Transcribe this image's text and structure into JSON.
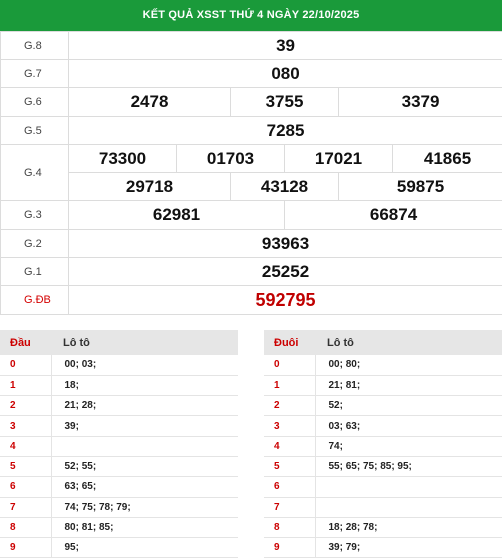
{
  "title": "KẾT QUẢ XSST THỨ 4 NGÀY 22/10/2025",
  "prizes": {
    "g8": {
      "label": "G.8",
      "nums": [
        "39"
      ]
    },
    "g7": {
      "label": "G.7",
      "nums": [
        "080"
      ]
    },
    "g6": {
      "label": "G.6",
      "nums": [
        "2478",
        "3755",
        "3379"
      ]
    },
    "g5": {
      "label": "G.5",
      "nums": [
        "7285"
      ]
    },
    "g4": {
      "label": "G.4",
      "nums": [
        "73300",
        "01703",
        "17021",
        "41865",
        "29718",
        "43128",
        "59875"
      ]
    },
    "g3": {
      "label": "G.3",
      "nums": [
        "62981",
        "66874"
      ]
    },
    "g2": {
      "label": "G.2",
      "nums": [
        "93963"
      ]
    },
    "g1": {
      "label": "G.1",
      "nums": [
        "25252"
      ]
    },
    "gdb": {
      "label": "G.ĐB",
      "nums": [
        "592795"
      ]
    }
  },
  "colors": {
    "header_bg": "#1a9a3a",
    "special": "#c00000",
    "key": "#cc0000"
  },
  "dau": {
    "key_header": "Đầu",
    "value_header": "Lô tô",
    "rows": [
      {
        "k": "0",
        "v": "00; 03;"
      },
      {
        "k": "1",
        "v": "18;"
      },
      {
        "k": "2",
        "v": "21; 28;"
      },
      {
        "k": "3",
        "v": "39;"
      },
      {
        "k": "4",
        "v": ""
      },
      {
        "k": "5",
        "v": "52; 55;"
      },
      {
        "k": "6",
        "v": "63; 65;"
      },
      {
        "k": "7",
        "v": "74; 75; 78; 79;"
      },
      {
        "k": "8",
        "v": "80; 81; 85;"
      },
      {
        "k": "9",
        "v": "95;"
      }
    ]
  },
  "duoi": {
    "key_header": "Đuôi",
    "value_header": "Lô tô",
    "rows": [
      {
        "k": "0",
        "v": "00; 80;"
      },
      {
        "k": "1",
        "v": "21; 81;"
      },
      {
        "k": "2",
        "v": "52;"
      },
      {
        "k": "3",
        "v": "03; 63;"
      },
      {
        "k": "4",
        "v": "74;"
      },
      {
        "k": "5",
        "v": "55; 65; 75; 85; 95;"
      },
      {
        "k": "6",
        "v": ""
      },
      {
        "k": "7",
        "v": ""
      },
      {
        "k": "8",
        "v": "18; 28; 78;"
      },
      {
        "k": "9",
        "v": "39; 79;"
      }
    ]
  }
}
